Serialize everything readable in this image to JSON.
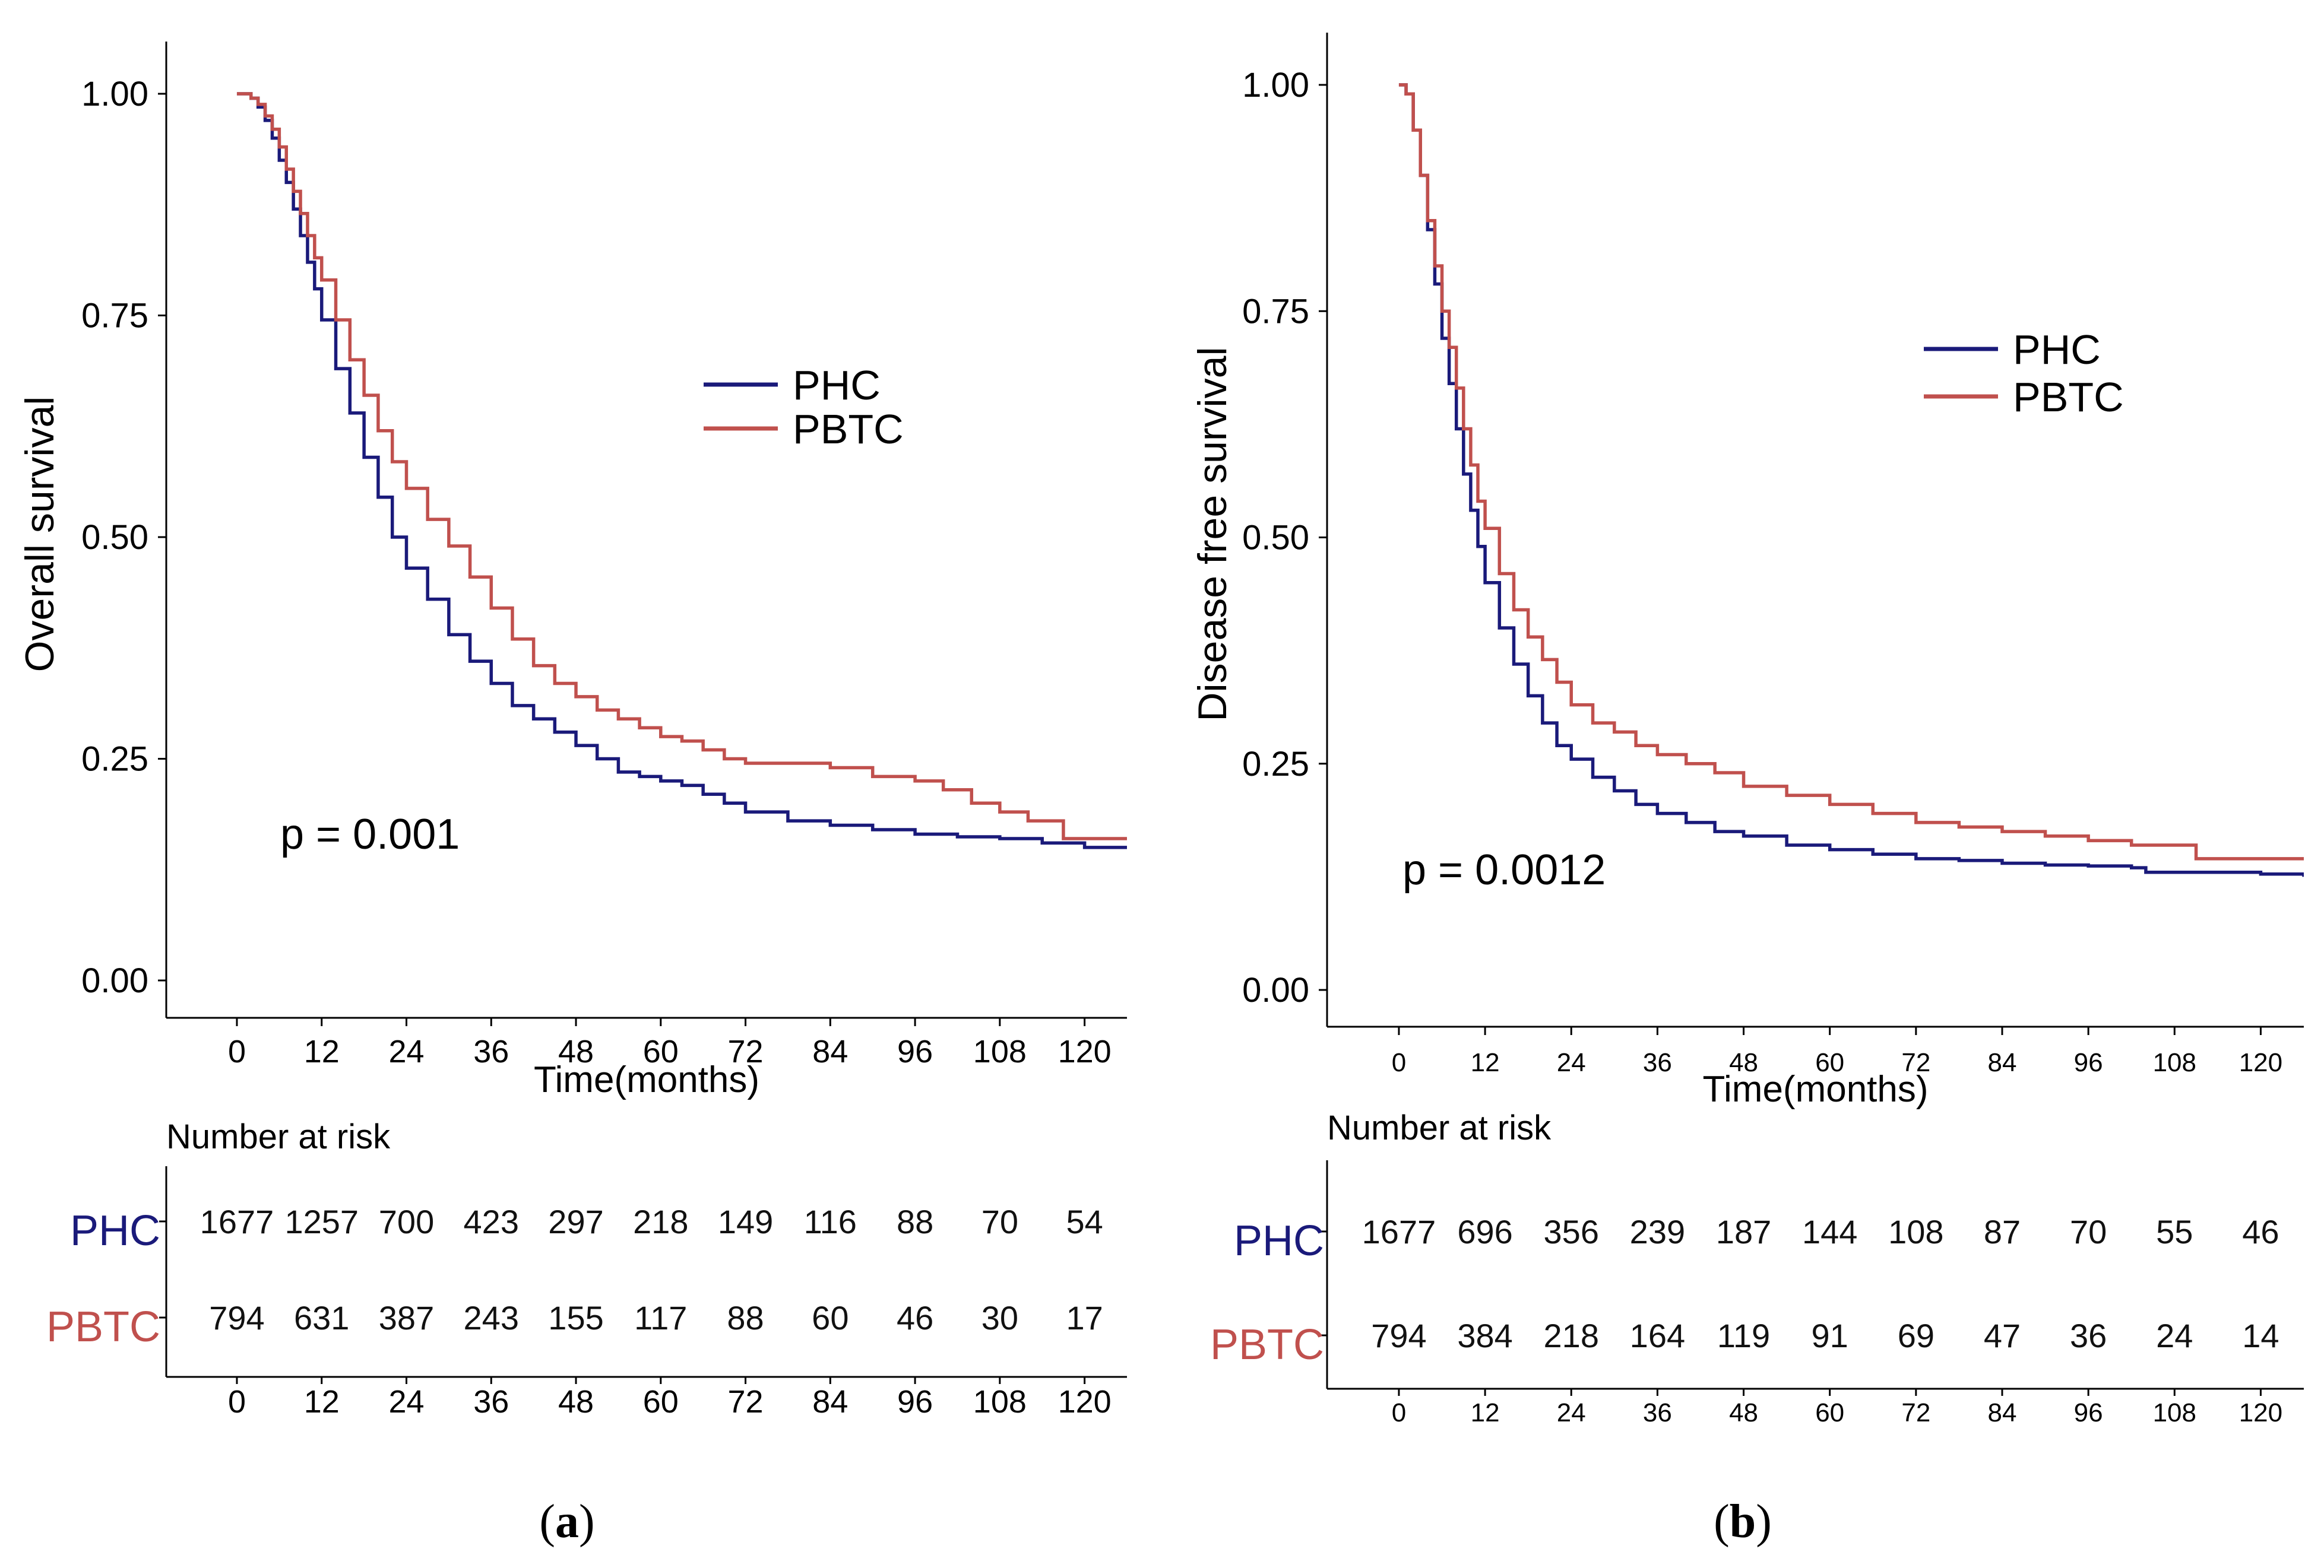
{
  "chart_data": [
    {
      "type": "line",
      "subtype": "kaplan-meier",
      "panel_label": "(a)",
      "panel_label_parts": [
        "(",
        "a",
        ")"
      ],
      "ylabel": "Overall survival",
      "xlabel": "Time(months)",
      "ylim": [
        0,
        1
      ],
      "xlim": [
        -10,
        126
      ],
      "y_ticks": [
        "0.00",
        "0.25",
        "0.50",
        "0.75",
        "1.00"
      ],
      "y_tick_values": [
        0,
        0.25,
        0.5,
        0.75,
        1.0
      ],
      "x_ticks": [
        "0",
        "12",
        "24",
        "36",
        "48",
        "60",
        "72",
        "84",
        "96",
        "108",
        "120"
      ],
      "x_tick_values": [
        0,
        12,
        24,
        36,
        48,
        60,
        72,
        84,
        96,
        108,
        120
      ],
      "legend": [
        {
          "name": "PHC",
          "color": "#1a1a7a"
        },
        {
          "name": "PBTC",
          "color": "#c0504d"
        }
      ],
      "legend_position": "top-right",
      "annotation": "p = 0.001",
      "grid": false,
      "series": [
        {
          "name": "PHC",
          "color": "#1a1a7a",
          "x": [
            0,
            1,
            2,
            3,
            4,
            5,
            6,
            7,
            8,
            9,
            10,
            11,
            12,
            14,
            16,
            18,
            20,
            22,
            24,
            27,
            30,
            33,
            36,
            39,
            42,
            45,
            48,
            51,
            54,
            57,
            60,
            63,
            66,
            69,
            72,
            78,
            84,
            90,
            96,
            102,
            108,
            114,
            120,
            126
          ],
          "y": [
            1.0,
            1.0,
            0.995,
            0.985,
            0.97,
            0.95,
            0.925,
            0.9,
            0.87,
            0.84,
            0.81,
            0.78,
            0.745,
            0.69,
            0.64,
            0.59,
            0.545,
            0.5,
            0.465,
            0.43,
            0.39,
            0.36,
            0.335,
            0.31,
            0.295,
            0.28,
            0.265,
            0.25,
            0.235,
            0.23,
            0.225,
            0.22,
            0.21,
            0.2,
            0.19,
            0.18,
            0.175,
            0.17,
            0.165,
            0.162,
            0.16,
            0.155,
            0.15,
            0.15
          ]
        },
        {
          "name": "PBTC",
          "color": "#c0504d",
          "x": [
            0,
            1,
            2,
            3,
            4,
            5,
            6,
            7,
            8,
            9,
            10,
            11,
            12,
            14,
            16,
            18,
            20,
            22,
            24,
            27,
            30,
            33,
            36,
            39,
            42,
            45,
            48,
            51,
            54,
            57,
            60,
            63,
            66,
            69,
            72,
            78,
            84,
            90,
            96,
            100,
            104,
            108,
            112,
            116,
            117,
            120,
            126
          ],
          "y": [
            1.0,
            1.0,
            0.995,
            0.988,
            0.975,
            0.96,
            0.94,
            0.915,
            0.89,
            0.865,
            0.84,
            0.815,
            0.79,
            0.745,
            0.7,
            0.66,
            0.62,
            0.585,
            0.555,
            0.52,
            0.49,
            0.455,
            0.42,
            0.385,
            0.355,
            0.335,
            0.32,
            0.305,
            0.295,
            0.285,
            0.275,
            0.27,
            0.26,
            0.25,
            0.245,
            0.245,
            0.24,
            0.23,
            0.225,
            0.215,
            0.2,
            0.19,
            0.18,
            0.18,
            0.16,
            0.16,
            0.16
          ]
        }
      ],
      "risk_table": {
        "title": "Number at risk",
        "times": [
          "0",
          "12",
          "24",
          "36",
          "48",
          "60",
          "72",
          "84",
          "96",
          "108",
          "120"
        ],
        "rows": [
          {
            "name": "PHC",
            "color": "#1a1a7a",
            "values": [
              "1677",
              "1257",
              "700",
              "423",
              "297",
              "218",
              "149",
              "116",
              "88",
              "70",
              "54"
            ]
          },
          {
            "name": "PBTC",
            "color": "#c0504d",
            "values": [
              "794",
              "631",
              "387",
              "243",
              "155",
              "117",
              "88",
              "60",
              "46",
              "30",
              "17"
            ]
          }
        ]
      }
    },
    {
      "type": "line",
      "subtype": "kaplan-meier",
      "panel_label": "(b)",
      "panel_label_parts": [
        "(",
        "b",
        ")"
      ],
      "ylabel": "Disease free survival",
      "xlabel": "Time(months)",
      "ylim": [
        0,
        1
      ],
      "xlim": [
        -10,
        126
      ],
      "y_ticks": [
        "0.00",
        "0.25",
        "0.50",
        "0.75",
        "1.00"
      ],
      "y_tick_values": [
        0,
        0.25,
        0.5,
        0.75,
        1.0
      ],
      "x_ticks": [
        "0",
        "12",
        "24",
        "36",
        "48",
        "60",
        "72",
        "84",
        "96",
        "108",
        "120"
      ],
      "x_tick_values": [
        0,
        12,
        24,
        36,
        48,
        60,
        72,
        84,
        96,
        108,
        120
      ],
      "legend": [
        {
          "name": "PHC",
          "color": "#1a1a7a"
        },
        {
          "name": "PBTC",
          "color": "#c0504d"
        }
      ],
      "legend_position": "top-right",
      "annotation": "p = 0.0012",
      "grid": false,
      "series": [
        {
          "name": "PHC",
          "color": "#1a1a7a",
          "x": [
            0,
            1,
            2,
            3,
            4,
            5,
            6,
            7,
            8,
            9,
            10,
            11,
            12,
            14,
            16,
            18,
            20,
            22,
            24,
            27,
            30,
            33,
            36,
            40,
            44,
            48,
            54,
            60,
            66,
            72,
            78,
            84,
            90,
            96,
            102,
            104,
            108,
            114,
            120,
            126
          ],
          "y": [
            1.0,
            0.99,
            0.95,
            0.9,
            0.84,
            0.78,
            0.72,
            0.67,
            0.62,
            0.57,
            0.53,
            0.49,
            0.45,
            0.4,
            0.36,
            0.325,
            0.295,
            0.27,
            0.255,
            0.235,
            0.22,
            0.205,
            0.195,
            0.185,
            0.175,
            0.17,
            0.16,
            0.155,
            0.15,
            0.145,
            0.143,
            0.14,
            0.138,
            0.137,
            0.135,
            0.13,
            0.13,
            0.13,
            0.128,
            0.125
          ]
        },
        {
          "name": "PBTC",
          "color": "#c0504d",
          "x": [
            0,
            1,
            2,
            3,
            4,
            5,
            6,
            7,
            8,
            9,
            10,
            11,
            12,
            14,
            16,
            18,
            20,
            22,
            24,
            27,
            30,
            33,
            36,
            40,
            44,
            48,
            54,
            60,
            66,
            72,
            78,
            84,
            90,
            96,
            102,
            108,
            111,
            114,
            120,
            126
          ],
          "y": [
            1.0,
            0.99,
            0.95,
            0.9,
            0.85,
            0.8,
            0.75,
            0.71,
            0.665,
            0.62,
            0.58,
            0.54,
            0.51,
            0.46,
            0.42,
            0.39,
            0.365,
            0.34,
            0.315,
            0.295,
            0.285,
            0.27,
            0.26,
            0.25,
            0.24,
            0.225,
            0.215,
            0.205,
            0.195,
            0.185,
            0.18,
            0.175,
            0.17,
            0.165,
            0.16,
            0.16,
            0.145,
            0.145,
            0.145,
            0.145
          ]
        }
      ],
      "risk_table": {
        "title": "Number at risk",
        "times": [
          "0",
          "12",
          "24",
          "36",
          "48",
          "60",
          "72",
          "84",
          "96",
          "108",
          "120"
        ],
        "rows": [
          {
            "name": "PHC",
            "color": "#1a1a7a",
            "values": [
              "1677",
              "696",
              "356",
              "239",
              "187",
              "144",
              "108",
              "87",
              "70",
              "55",
              "46"
            ]
          },
          {
            "name": "PBTC",
            "color": "#c0504d",
            "values": [
              "794",
              "384",
              "218",
              "164",
              "119",
              "91",
              "69",
              "47",
              "36",
              "24",
              "14"
            ]
          }
        ]
      }
    }
  ]
}
